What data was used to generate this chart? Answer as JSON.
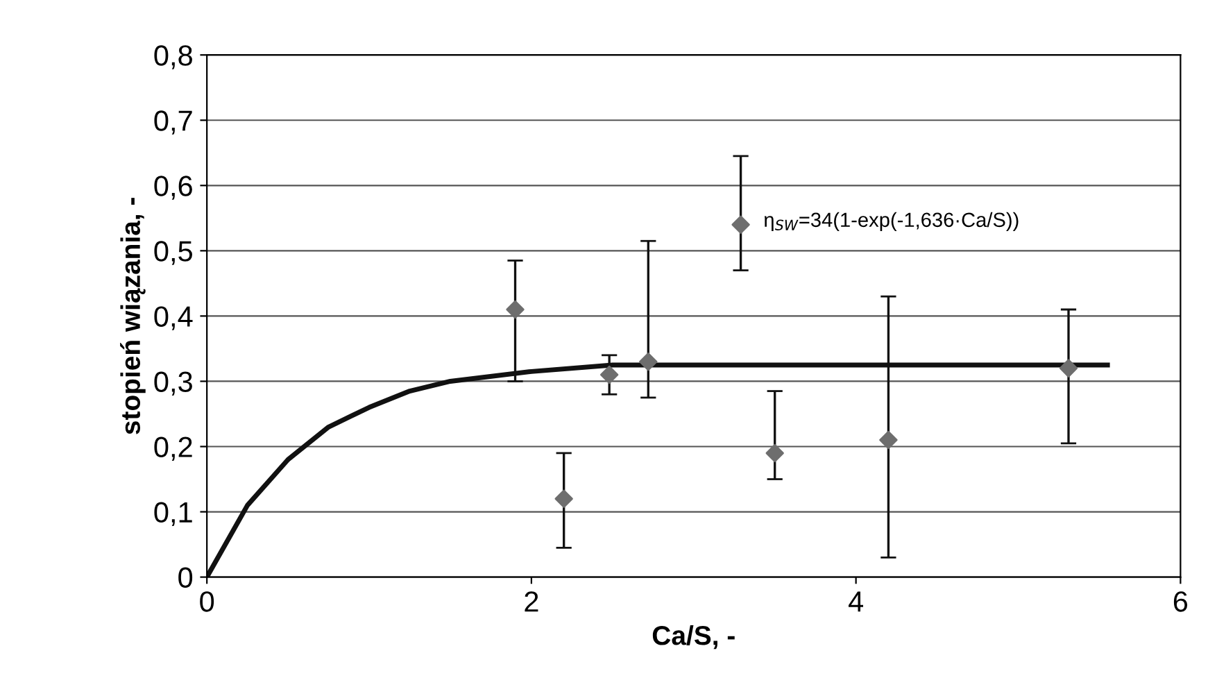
{
  "chart_data": {
    "type": "scatter",
    "xlabel": "Ca/S, -",
    "ylabel": "stopień wiązania, -",
    "xlim": [
      0,
      6
    ],
    "xticks": [
      0,
      2,
      4,
      6
    ],
    "ylim": [
      0,
      0.8
    ],
    "yticks": [
      0,
      {
        "value": 0.1,
        "label": "0,1"
      },
      {
        "value": 0.2,
        "label": "0,2"
      },
      {
        "value": 0.3,
        "label": "0,3"
      },
      {
        "value": 0.4,
        "label": "0,4"
      },
      {
        "value": 0.5,
        "label": "0,5"
      },
      {
        "value": 0.6,
        "label": "0,6"
      },
      {
        "value": 0.7,
        "label": "0,7"
      },
      {
        "value": 0.8,
        "label": "0,8"
      }
    ],
    "grid": "y",
    "legend": false,
    "series": [
      {
        "color": "#6e6e6e",
        "marker": "diamond",
        "x": [
          1.9,
          2.2,
          2.48,
          2.72,
          3.29,
          3.5,
          4.2,
          5.31
        ],
        "values": [
          0.41,
          0.12,
          0.31,
          0.33,
          0.54,
          0.19,
          0.21,
          0.32
        ],
        "errors": [
          [
            0.3,
            0.485
          ],
          [
            0.045,
            0.19
          ],
          [
            0.28,
            0.34
          ],
          [
            0.275,
            0.515
          ],
          [
            0.47,
            0.645
          ],
          [
            0.15,
            0.285
          ],
          [
            0.03,
            0.43
          ],
          [
            0.205,
            0.41
          ]
        ]
      },
      {
        "type": "line",
        "color": "#111111",
        "marker": "none",
        "line_style": "solid",
        "x": [
          0,
          0.25,
          0.5,
          0.75,
          1,
          1.25,
          1.5,
          2,
          2.5,
          3,
          4,
          5,
          5.55
        ],
        "values": [
          0,
          0.11,
          0.18,
          0.23,
          0.26,
          0.285,
          0.3,
          0.315,
          0.325,
          0.325,
          0.325,
          0.325,
          0.325
        ]
      }
    ],
    "annotations": [
      {
        "text": "η$_{SW}$=34(1-exp(-1,636·Ca/S))",
        "x": 3.35,
        "y": 0.53
      }
    ]
  }
}
